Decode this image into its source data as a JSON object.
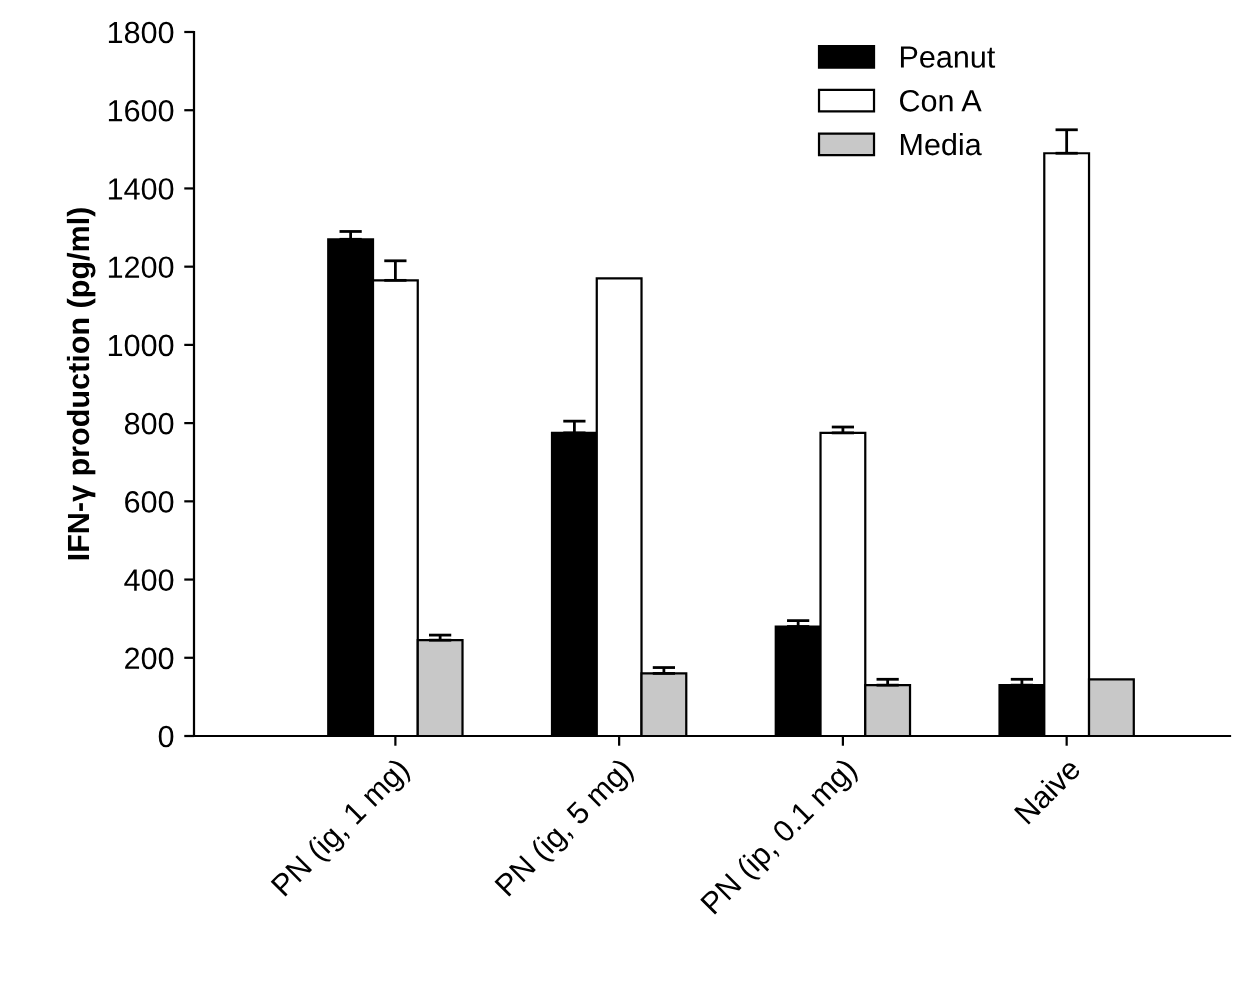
{
  "chart_data": {
    "type": "bar",
    "ylabel": "IFN-γ production (pg/ml)",
    "categories": [
      "PN (ig, 1 mg)",
      "PN (ig, 5 mg)",
      "PN (ip, 0.1 mg)",
      "Naive"
    ],
    "series": [
      {
        "name": "Peanut",
        "color": "#000000",
        "values": [
          1270,
          775,
          280,
          130
        ],
        "errors": [
          [
            1270,
            1290
          ],
          [
            775,
            805
          ],
          [
            280,
            295
          ],
          [
            130,
            145
          ]
        ]
      },
      {
        "name": "Con A",
        "color": "#ffffff",
        "values": [
          1165,
          1170,
          775,
          1490
        ],
        "errors": [
          [
            1165,
            1215
          ],
          null,
          [
            775,
            790
          ],
          [
            1490,
            1550
          ]
        ]
      },
      {
        "name": "Media",
        "color": "#c8c8c8",
        "values": [
          245,
          160,
          130,
          145
        ],
        "errors": [
          [
            245,
            258
          ],
          [
            160,
            175
          ],
          [
            130,
            145
          ],
          null
        ]
      }
    ],
    "ylim": [
      0,
      1800
    ],
    "yticks": [
      0,
      200,
      400,
      600,
      800,
      1000,
      1200,
      1400,
      1600,
      1800
    ],
    "grid": false,
    "legend": "top right"
  }
}
